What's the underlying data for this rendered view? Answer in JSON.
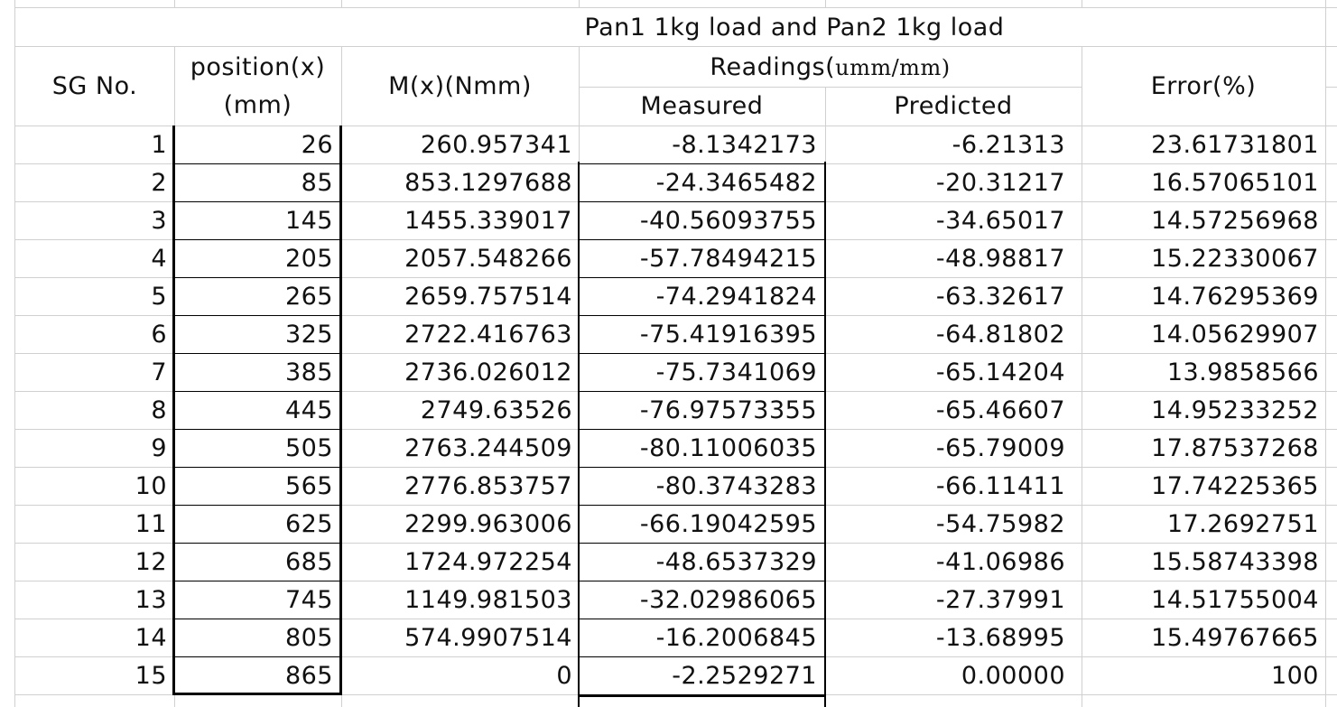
{
  "title": "Pan1 1kg load and Pan2 1kg load",
  "headers": {
    "sg_no": "SG No.",
    "position_line1": "position(x)",
    "position_line2": "(mm)",
    "moment": "M(x)(Nmm)",
    "readings_prefix": "Readings(",
    "readings_unit": "umm/mm)",
    "measured": "Measured",
    "predicted": "Predicted",
    "error": "Error(%)"
  },
  "rows": [
    {
      "sg": "1",
      "position": "26",
      "moment": "260.957341",
      "measured": "-8.1342173",
      "predicted": "-6.21313",
      "error": "23.61731801"
    },
    {
      "sg": "2",
      "position": "85",
      "moment": "853.1297688",
      "measured": "-24.3465482",
      "predicted": "-20.31217",
      "error": "16.57065101"
    },
    {
      "sg": "3",
      "position": "145",
      "moment": "1455.339017",
      "measured": "-40.56093755",
      "predicted": "-34.65017",
      "error": "14.57256968"
    },
    {
      "sg": "4",
      "position": "205",
      "moment": "2057.548266",
      "measured": "-57.78494215",
      "predicted": "-48.98817",
      "error": "15.22330067"
    },
    {
      "sg": "5",
      "position": "265",
      "moment": "2659.757514",
      "measured": "-74.2941824",
      "predicted": "-63.32617",
      "error": "14.76295369"
    },
    {
      "sg": "6",
      "position": "325",
      "moment": "2722.416763",
      "measured": "-75.41916395",
      "predicted": "-64.81802",
      "error": "14.05629907"
    },
    {
      "sg": "7",
      "position": "385",
      "moment": "2736.026012",
      "measured": "-75.7341069",
      "predicted": "-65.14204",
      "error": "13.9858566"
    },
    {
      "sg": "8",
      "position": "445",
      "moment": "2749.63526",
      "measured": "-76.97573355",
      "predicted": "-65.46607",
      "error": "14.95233252"
    },
    {
      "sg": "9",
      "position": "505",
      "moment": "2763.244509",
      "measured": "-80.11006035",
      "predicted": "-65.79009",
      "error": "17.87537268"
    },
    {
      "sg": "10",
      "position": "565",
      "moment": "2776.853757",
      "measured": "-80.3743283",
      "predicted": "-66.11411",
      "error": "17.74225365"
    },
    {
      "sg": "11",
      "position": "625",
      "moment": "2299.963006",
      "measured": "-66.19042595",
      "predicted": "-54.75982",
      "error": "17.2692751"
    },
    {
      "sg": "12",
      "position": "685",
      "moment": "1724.972254",
      "measured": "-48.6537329",
      "predicted": "-41.06986",
      "error": "15.58743398"
    },
    {
      "sg": "13",
      "position": "745",
      "moment": "1149.981503",
      "measured": "-32.02986065",
      "predicted": "-27.37991",
      "error": "14.51755004"
    },
    {
      "sg": "14",
      "position": "805",
      "moment": "574.9907514",
      "measured": "-16.2006845",
      "predicted": "-13.68995",
      "error": "15.49767665"
    },
    {
      "sg": "15",
      "position": "865",
      "moment": "0",
      "measured": "-2.2529271",
      "predicted": "0.00000",
      "error": "100"
    }
  ]
}
